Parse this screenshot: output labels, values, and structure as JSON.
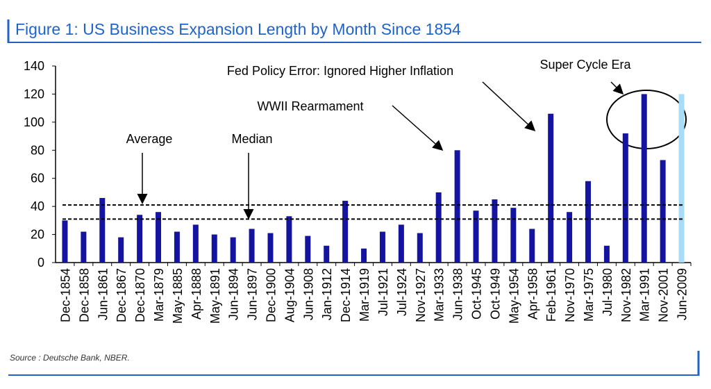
{
  "chart_data": {
    "type": "bar",
    "title": "Figure 1: US Business Expansion Length by Month Since 1854",
    "source": "Source : Deutsche Bank, NBER.",
    "categories": [
      "Dec-1854",
      "Dec-1858",
      "Jun-1861",
      "Dec-1867",
      "Dec-1870",
      "Mar-1879",
      "May-1885",
      "Apr-1888",
      "May-1891",
      "Jun-1894",
      "Jun-1897",
      "Dec-1900",
      "Aug-1904",
      "Jun-1908",
      "Jan-1912",
      "Dec-1914",
      "Mar-1919",
      "Jul-1921",
      "Jul-1924",
      "Nov-1927",
      "Mar-1933",
      "Jun-1938",
      "Oct-1945",
      "Oct-1949",
      "May-1954",
      "Apr-1958",
      "Feb-1961",
      "Nov-1970",
      "Mar-1975",
      "Jul-1980",
      "Nov-1982",
      "Mar-1991",
      "Nov-2001",
      "Jun-2009"
    ],
    "values": [
      30,
      22,
      46,
      18,
      34,
      36,
      22,
      27,
      20,
      18,
      24,
      21,
      33,
      19,
      12,
      44,
      10,
      22,
      27,
      21,
      50,
      80,
      37,
      45,
      39,
      24,
      106,
      36,
      58,
      12,
      92,
      120,
      73,
      120
    ],
    "bar_colors": [
      "#1414a0",
      "#1414a0",
      "#1414a0",
      "#1414a0",
      "#1414a0",
      "#1414a0",
      "#1414a0",
      "#1414a0",
      "#1414a0",
      "#1414a0",
      "#1414a0",
      "#1414a0",
      "#1414a0",
      "#1414a0",
      "#1414a0",
      "#1414a0",
      "#1414a0",
      "#1414a0",
      "#1414a0",
      "#1414a0",
      "#1414a0",
      "#1414a0",
      "#1414a0",
      "#1414a0",
      "#1414a0",
      "#1414a0",
      "#1414a0",
      "#1414a0",
      "#1414a0",
      "#1414a0",
      "#1414a0",
      "#1414a0",
      "#1414a0",
      "#a8dcf4"
    ],
    "reference_lines": [
      {
        "label": "Average",
        "value": 41
      },
      {
        "label": "Median",
        "value": 31
      }
    ],
    "annotations": [
      "WWII Rearmament",
      "Fed Policy Error: Ignored Higher Inflation",
      "Super Cycle Era"
    ],
    "ylim": [
      0,
      140
    ],
    "yticks": [
      0,
      20,
      40,
      60,
      80,
      100,
      120,
      140
    ]
  }
}
